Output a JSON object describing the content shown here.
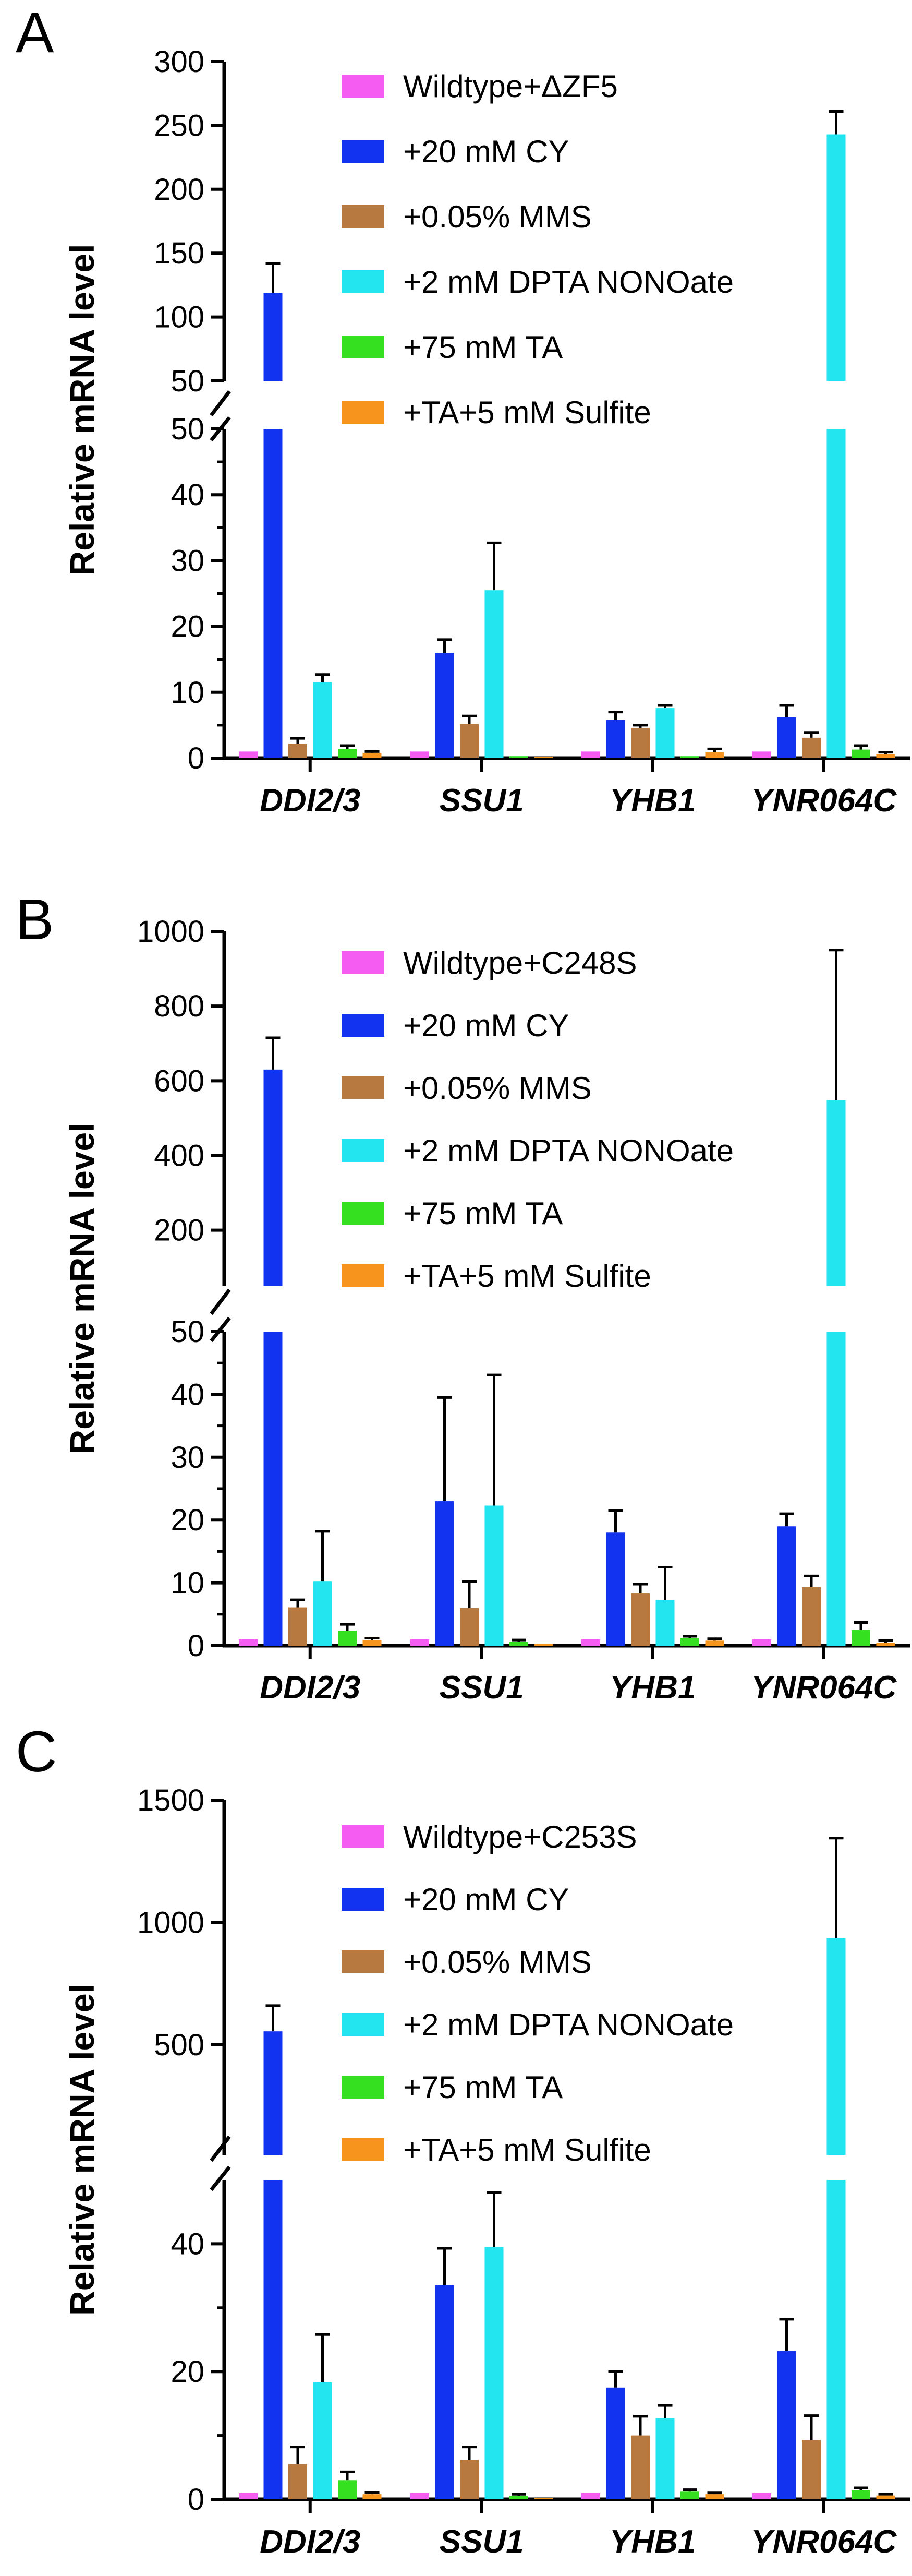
{
  "chart_data": [
    {
      "type": "bar",
      "panel_label": "A",
      "ylabel": "Relative mRNA level",
      "categories": [
        "DDI2/3",
        "SSU1",
        "YHB1",
        "YNR064C"
      ],
      "y_axis": {
        "broken": true,
        "lower_range": [
          0,
          50
        ],
        "lower_ticks": [
          0,
          10,
          20,
          30,
          40,
          50
        ],
        "upper_range": [
          50,
          300
        ],
        "upper_ticks": [
          50,
          100,
          150,
          200,
          250,
          300
        ]
      },
      "series": [
        {
          "name": "Wildtype+ΔZF5",
          "color": "#f55cf1",
          "values": [
            1,
            1,
            1,
            1
          ],
          "errors": [
            0,
            0,
            0,
            0
          ]
        },
        {
          "name": "+20 mM CY",
          "color": "#1233f0",
          "values": [
            119,
            16,
            5.8,
            6.2
          ],
          "errors": [
            23,
            2,
            1.2,
            1.8
          ]
        },
        {
          "name": "+0.05% MMS",
          "color": "#b7793f",
          "values": [
            2.2,
            5.2,
            4.6,
            3.1
          ],
          "errors": [
            0.8,
            1.2,
            0.4,
            0.8
          ]
        },
        {
          "name": "+2 mM DPTA NONOate",
          "color": "#22e5f0",
          "values": [
            11.5,
            25.5,
            7.6,
            243
          ],
          "errors": [
            1.2,
            7.2,
            0.4,
            18
          ]
        },
        {
          "name": "+75 mM TA",
          "color": "#35e020",
          "values": [
            1.4,
            0.3,
            0.3,
            1.3
          ],
          "errors": [
            0.5,
            0,
            0,
            0.6
          ]
        },
        {
          "name": "+TA+5 mM Sulfite",
          "color": "#f7941d",
          "values": [
            0.8,
            0.2,
            0.9,
            0.6
          ],
          "errors": [
            0.2,
            0,
            0.5,
            0.3
          ]
        }
      ]
    },
    {
      "type": "bar",
      "panel_label": "B",
      "ylabel": "Relative mRNA level",
      "categories": [
        "DDI2/3",
        "SSU1",
        "YHB1",
        "YNR064C"
      ],
      "y_axis": {
        "broken": true,
        "lower_range": [
          0,
          50
        ],
        "lower_ticks": [
          0,
          10,
          20,
          30,
          40,
          50
        ],
        "upper_range": [
          50,
          1000
        ],
        "upper_ticks": [
          200,
          400,
          600,
          800,
          1000
        ]
      },
      "series": [
        {
          "name": "Wildtype+C248S",
          "color": "#f55cf1",
          "values": [
            1,
            1,
            1,
            1
          ],
          "errors": [
            0,
            0,
            0,
            0
          ]
        },
        {
          "name": "+20 mM CY",
          "color": "#1233f0",
          "values": [
            630,
            23,
            18,
            19
          ],
          "errors": [
            85,
            16.5,
            3.5,
            2
          ]
        },
        {
          "name": "+0.05% MMS",
          "color": "#b7793f",
          "values": [
            6.1,
            6,
            8.3,
            9.3
          ],
          "errors": [
            1.2,
            4.2,
            1.5,
            1.8
          ]
        },
        {
          "name": "+2 mM DPTA NONOate",
          "color": "#22e5f0",
          "values": [
            10.2,
            22.3,
            7.3,
            548
          ],
          "errors": [
            8,
            20.8,
            5.2,
            402
          ]
        },
        {
          "name": "+75 mM TA",
          "color": "#35e020",
          "values": [
            2.4,
            0.6,
            1.2,
            2.5
          ],
          "errors": [
            1,
            0.3,
            0.3,
            1.2
          ]
        },
        {
          "name": "+TA+5 mM Sulfite",
          "color": "#f7941d",
          "values": [
            0.9,
            0.2,
            0.8,
            0.5
          ],
          "errors": [
            0.3,
            0,
            0.3,
            0.3
          ]
        }
      ]
    },
    {
      "type": "bar",
      "panel_label": "C",
      "ylabel": "Relative mRNA level",
      "categories": [
        "DDI2/3",
        "SSU1",
        "YHB1",
        "YNR064C"
      ],
      "y_axis": {
        "broken": true,
        "lower_range": [
          0,
          50
        ],
        "lower_ticks": [
          0,
          20,
          40
        ],
        "upper_range": [
          50,
          1500
        ],
        "upper_ticks": [
          500,
          1000,
          1500
        ]
      },
      "series": [
        {
          "name": "Wildtype+C253S",
          "color": "#f55cf1",
          "values": [
            1,
            1,
            1,
            1
          ],
          "errors": [
            0,
            0,
            0,
            0
          ]
        },
        {
          "name": "+20 mM CY",
          "color": "#1233f0",
          "values": [
            555,
            33.5,
            17.5,
            23.2
          ],
          "errors": [
            105,
            5.8,
            2.5,
            5
          ]
        },
        {
          "name": "+0.05% MMS",
          "color": "#b7793f",
          "values": [
            5.5,
            6.2,
            10,
            9.3
          ],
          "errors": [
            2.7,
            2,
            3,
            3.8
          ]
        },
        {
          "name": "+2 mM DPTA NONOate",
          "color": "#22e5f0",
          "values": [
            18.3,
            39.5,
            12.7,
            935
          ],
          "errors": [
            7.5,
            8.5,
            2,
            410
          ]
        },
        {
          "name": "+75 mM TA",
          "color": "#35e020",
          "values": [
            3,
            0.5,
            1.2,
            1.4
          ],
          "errors": [
            1.3,
            0.3,
            0.3,
            0.4
          ]
        },
        {
          "name": "+TA+5 mM Sulfite",
          "color": "#f7941d",
          "values": [
            0.8,
            0.2,
            0.8,
            0.6
          ],
          "errors": [
            0.3,
            0,
            0.2,
            0.2
          ]
        }
      ]
    }
  ]
}
